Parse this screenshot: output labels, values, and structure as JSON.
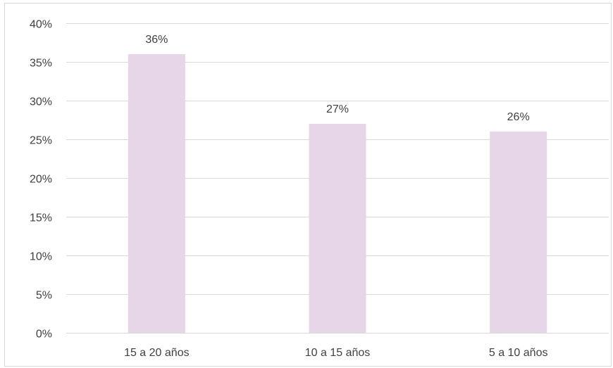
{
  "chart_data": {
    "type": "bar",
    "title": "",
    "xlabel": "",
    "ylabel": "",
    "categories": [
      "15 a 20 años",
      "10 a 15 años",
      "5 a 10 años"
    ],
    "values": [
      36,
      27,
      26
    ],
    "value_labels": [
      "36%",
      "27%",
      "26%"
    ],
    "ylim": [
      0,
      40
    ],
    "yticks": [
      0,
      5,
      10,
      15,
      20,
      25,
      30,
      35,
      40
    ],
    "ytick_labels": [
      "0%",
      "5%",
      "10%",
      "15%",
      "20%",
      "25%",
      "30%",
      "35%",
      "40%"
    ],
    "grid": true,
    "legend": "none",
    "colors": {
      "bar": "#e7d6e8",
      "grid": "#d9d9d9",
      "text": "#404040",
      "frame": "#d9d9d9"
    }
  }
}
